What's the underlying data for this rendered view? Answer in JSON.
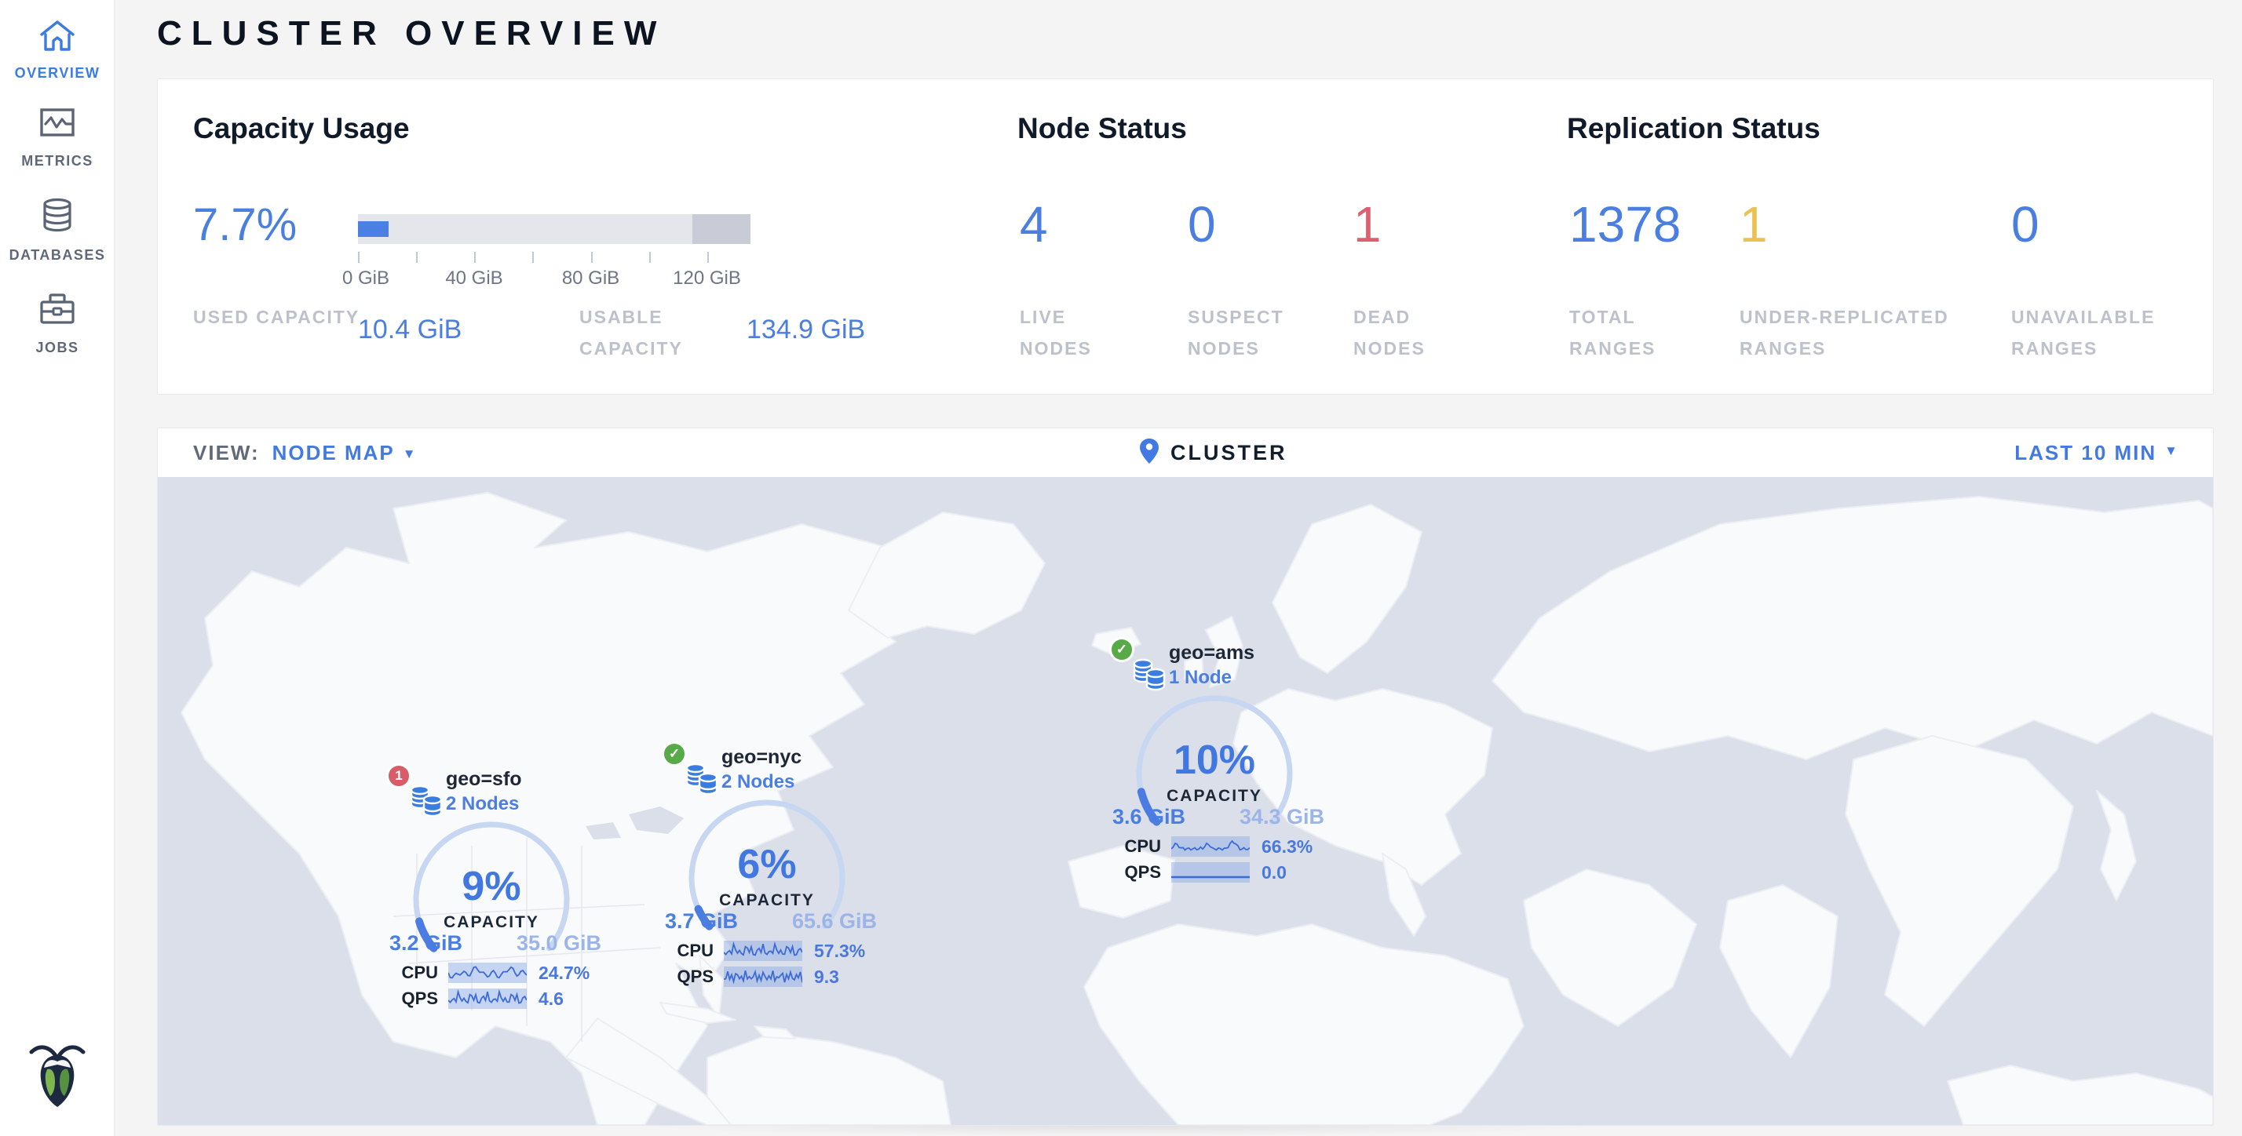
{
  "page_title": "CLUSTER OVERVIEW",
  "sidebar": {
    "items": [
      {
        "label": "OVERVIEW",
        "icon": "home-icon",
        "active": true
      },
      {
        "label": "METRICS",
        "icon": "metrics-chart-icon",
        "active": false
      },
      {
        "label": "DATABASES",
        "icon": "database-icon",
        "active": false
      },
      {
        "label": "JOBS",
        "icon": "briefcase-icon",
        "active": false
      }
    ],
    "logo": "cockroachdb-logo"
  },
  "summary": {
    "capacity": {
      "heading": "Capacity Usage",
      "percent": "7.7%",
      "percent_value": 7.7,
      "bar": {
        "max_gib": 135,
        "tick_step_gib": 20,
        "tick_labels": [
          "0 GiB",
          "40 GiB",
          "80 GiB",
          "120 GiB"
        ]
      },
      "stats": [
        {
          "label": "USED CAPACITY",
          "value": "10.4 GiB"
        },
        {
          "label": "USABLE CAPACITY",
          "value": "134.9 GiB"
        }
      ]
    },
    "nodes": {
      "heading": "Node Status",
      "stats": [
        {
          "value": "4",
          "label": "LIVE NODES",
          "color": "blue"
        },
        {
          "value": "0",
          "label": "SUSPECT NODES",
          "color": "blue"
        },
        {
          "value": "1",
          "label": "DEAD NODES",
          "color": "red"
        }
      ]
    },
    "replication": {
      "heading": "Replication Status",
      "stats": [
        {
          "value": "1378",
          "label": "TOTAL RANGES",
          "color": "blue"
        },
        {
          "value": "1",
          "label": "UNDER-REPLICATED RANGES",
          "color": "yellow"
        },
        {
          "value": "0",
          "label": "UNAVAILABLE RANGES",
          "color": "blue"
        }
      ]
    }
  },
  "toolbar": {
    "view_label": "VIEW:",
    "view_value": "NODE MAP",
    "center_label": "CLUSTER",
    "center_icon": "map-pin-icon",
    "time_range": "LAST 10 MIN"
  },
  "map": {
    "nodes": [
      {
        "locality": "geo=sfo",
        "node_count": "2 Nodes",
        "status": "warning",
        "badge": "1",
        "capacity_pct": 9,
        "capacity_pct_label": "9%",
        "capacity_label": "CAPACITY",
        "used": "3.2 GiB",
        "usable": "35.0 GiB",
        "cpu_label": "CPU",
        "cpu": "24.7%",
        "qps_label": "QPS",
        "qps": "4.6"
      },
      {
        "locality": "geo=nyc",
        "node_count": "2 Nodes",
        "status": "healthy",
        "badge": "check",
        "capacity_pct": 6,
        "capacity_pct_label": "6%",
        "capacity_label": "CAPACITY",
        "used": "3.7 GiB",
        "usable": "65.6 GiB",
        "cpu_label": "CPU",
        "cpu": "57.3%",
        "qps_label": "QPS",
        "qps": "9.3"
      },
      {
        "locality": "geo=ams",
        "node_count": "1 Node",
        "status": "healthy",
        "badge": "check",
        "capacity_pct": 10,
        "capacity_pct_label": "10%",
        "capacity_label": "CAPACITY",
        "used": "3.6 GiB",
        "usable": "34.3 GiB",
        "cpu_label": "CPU",
        "cpu": "66.3%",
        "qps_label": "QPS",
        "qps": "0.0"
      }
    ]
  },
  "colors": {
    "accent_blue": "#4a7ee0",
    "pale_blue": "#9cb4e7",
    "status_red": "#dd6070",
    "status_yellow": "#ecc152",
    "badge_red": "#d95d69",
    "badge_green": "#58aa48",
    "label_gray": "#bcc1cb",
    "ocean": "#dbdfe9",
    "land": "#f9fafc"
  }
}
